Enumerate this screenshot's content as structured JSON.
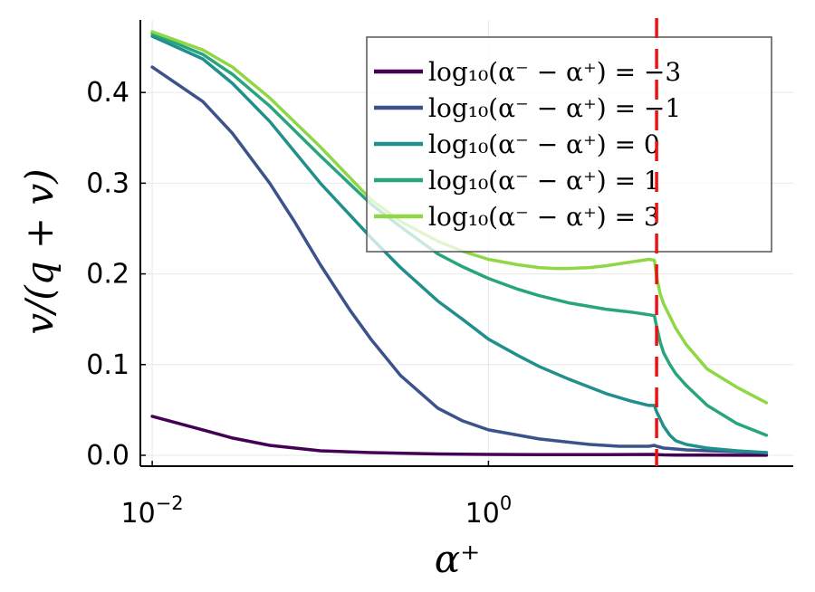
{
  "chart_data": {
    "type": "line",
    "title": "",
    "xlabel": "α⁺",
    "ylabel": "v/(q + v)",
    "xscale": "log10",
    "xlim": [
      0.0085,
      65
    ],
    "ylim": [
      -0.012,
      0.48
    ],
    "x_ticks": [
      {
        "value": 0.01,
        "base": "10",
        "exp": "−2"
      },
      {
        "value": 1,
        "base": "10",
        "exp": "0"
      }
    ],
    "y_ticks": [
      {
        "value": 0.0,
        "label": "0.0"
      },
      {
        "value": 0.1,
        "label": "0.1"
      },
      {
        "value": 0.2,
        "label": "0.2"
      },
      {
        "value": 0.3,
        "label": "0.3"
      },
      {
        "value": 0.4,
        "label": "0.4"
      }
    ],
    "grid": true,
    "legend_position": "top-right",
    "vline": {
      "x": 10,
      "color": "#ee1111",
      "style": "dashed"
    },
    "series": [
      {
        "name": "log₁₀(α⁻ − α⁺) = −3",
        "color": "#440154",
        "x": [
          0.01,
          0.02,
          0.03,
          0.05,
          0.1,
          0.2,
          0.5,
          1,
          2,
          5,
          9.5,
          10,
          11,
          13,
          20,
          30,
          45
        ],
        "y": [
          0.043,
          0.028,
          0.019,
          0.011,
          0.005,
          0.003,
          0.0015,
          0.001,
          0.0008,
          0.0008,
          0.001,
          0.0008,
          0.0005,
          0.0003,
          0.0002,
          0.0001,
          0.0001
        ]
      },
      {
        "name": "log₁₀(α⁻ − α⁺) = −1",
        "color": "#3b528b",
        "x": [
          0.01,
          0.02,
          0.03,
          0.05,
          0.07,
          0.1,
          0.15,
          0.2,
          0.3,
          0.5,
          0.7,
          1,
          2,
          4,
          6,
          9,
          9.7,
          10,
          10.5,
          11,
          12,
          15,
          20,
          30,
          45
        ],
        "y": [
          0.428,
          0.39,
          0.355,
          0.3,
          0.258,
          0.21,
          0.16,
          0.128,
          0.088,
          0.052,
          0.038,
          0.028,
          0.018,
          0.012,
          0.01,
          0.01,
          0.011,
          0.01,
          0.009,
          0.008,
          0.0075,
          0.006,
          0.005,
          0.004,
          0.003
        ]
      },
      {
        "name": "log₁₀(α⁻ − α⁺) = 0",
        "color": "#21908d",
        "x": [
          0.01,
          0.02,
          0.03,
          0.05,
          0.1,
          0.2,
          0.3,
          0.5,
          0.7,
          1,
          1.5,
          2,
          3,
          5,
          7,
          9,
          9.7,
          10,
          10.5,
          11,
          12,
          13,
          15,
          20,
          30,
          45
        ],
        "y": [
          0.462,
          0.437,
          0.41,
          0.368,
          0.3,
          0.24,
          0.207,
          0.17,
          0.15,
          0.128,
          0.11,
          0.098,
          0.084,
          0.068,
          0.06,
          0.055,
          0.055,
          0.048,
          0.04,
          0.032,
          0.022,
          0.016,
          0.012,
          0.008,
          0.005,
          0.003
        ]
      },
      {
        "name": "log₁₀(α⁻ − α⁺) = 1",
        "color": "#29a57d",
        "x": [
          0.01,
          0.02,
          0.03,
          0.05,
          0.1,
          0.2,
          0.3,
          0.5,
          0.7,
          1,
          1.5,
          2,
          3,
          5,
          7,
          9,
          9.7,
          10,
          10.5,
          11,
          12,
          13,
          15,
          20,
          30,
          45
        ],
        "y": [
          0.465,
          0.442,
          0.42,
          0.385,
          0.33,
          0.277,
          0.252,
          0.222,
          0.208,
          0.195,
          0.183,
          0.176,
          0.168,
          0.161,
          0.158,
          0.155,
          0.154,
          0.142,
          0.125,
          0.113,
          0.1,
          0.09,
          0.077,
          0.055,
          0.035,
          0.022
        ]
      },
      {
        "name": "log₁₀(α⁻ − α⁺) = 3",
        "color": "#8fd744",
        "x": [
          0.01,
          0.02,
          0.03,
          0.05,
          0.1,
          0.2,
          0.3,
          0.5,
          0.7,
          1,
          1.5,
          2,
          2.5,
          3,
          4,
          5,
          7,
          9,
          9.7,
          10,
          10.5,
          11,
          12,
          13,
          15,
          20,
          30,
          45
        ],
        "y": [
          0.467,
          0.447,
          0.428,
          0.394,
          0.34,
          0.282,
          0.258,
          0.236,
          0.225,
          0.216,
          0.21,
          0.207,
          0.206,
          0.206,
          0.207,
          0.209,
          0.213,
          0.216,
          0.215,
          0.197,
          0.178,
          0.167,
          0.153,
          0.14,
          0.122,
          0.095,
          0.075,
          0.058
        ]
      }
    ]
  }
}
